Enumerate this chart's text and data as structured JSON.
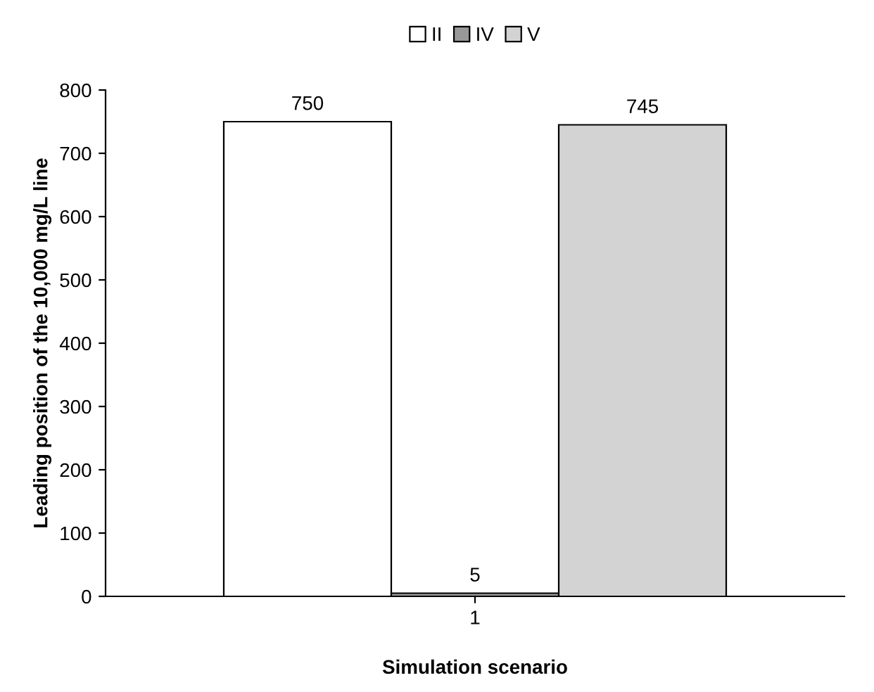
{
  "chart_data": {
    "type": "bar",
    "categories": [
      "1"
    ],
    "series": [
      {
        "name": "II",
        "color": "#ffffff",
        "values": [
          750
        ]
      },
      {
        "name": "IV",
        "color": "#999999",
        "values": [
          5
        ]
      },
      {
        "name": "V",
        "color": "#d3d3d3",
        "values": [
          745
        ]
      }
    ],
    "xlabel": "Simulation scenario",
    "ylabel": "Leading position of the 10,000 mg/L line",
    "ylim": [
      0,
      800
    ],
    "yticks": [
      0,
      100,
      200,
      300,
      400,
      500,
      600,
      700,
      800
    ],
    "data_labels": true,
    "legend": "top",
    "grid": false
  }
}
